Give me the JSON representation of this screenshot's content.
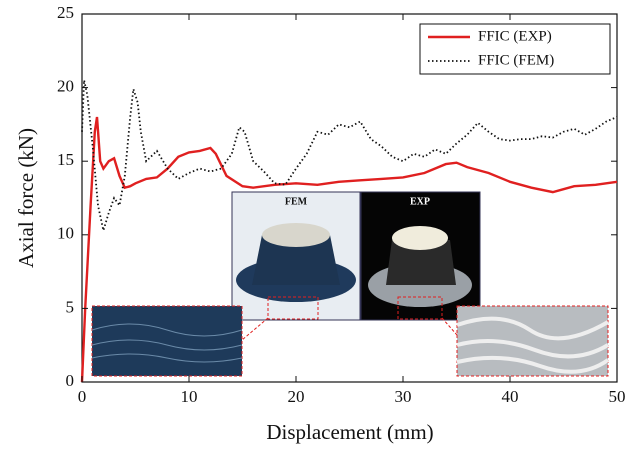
{
  "chart_data": {
    "type": "line",
    "xlabel": "Displacement (mm)",
    "ylabel": "Axial force (kN)",
    "xlim": [
      0,
      50
    ],
    "ylim": [
      0,
      25
    ],
    "xticks": [
      0,
      10,
      20,
      30,
      40,
      50
    ],
    "yticks": [
      0,
      5,
      10,
      15,
      20,
      25
    ],
    "legend": "upper right",
    "annotations": [
      "FEM",
      "EXP"
    ],
    "series": [
      {
        "name": "FFIC (EXP)",
        "color": "#e02020",
        "style": "solid",
        "x": [
          0,
          0.3,
          0.8,
          1.2,
          1.4,
          1.7,
          2,
          2.5,
          3,
          3.5,
          4,
          4.5,
          5,
          6,
          7,
          8,
          9,
          10,
          11,
          12,
          12.5,
          13.5,
          15,
          16,
          18,
          20,
          22,
          24,
          26,
          28,
          30,
          32,
          34,
          35,
          36,
          38,
          40,
          42,
          44,
          45,
          46,
          48,
          50
        ],
        "values": [
          0,
          5,
          12,
          17,
          18,
          15,
          14.5,
          15,
          15.2,
          14,
          13.2,
          13.3,
          13.5,
          13.8,
          13.9,
          14.5,
          15.3,
          15.6,
          15.7,
          15.9,
          15.5,
          14,
          13.3,
          13.2,
          13.4,
          13.5,
          13.4,
          13.6,
          13.7,
          13.8,
          13.9,
          14.2,
          14.8,
          14.9,
          14.6,
          14.2,
          13.6,
          13.2,
          12.9,
          13.1,
          13.3,
          13.4,
          13.6
        ]
      },
      {
        "name": "FFIC (FEM)",
        "color": "#111111",
        "style": "dotted",
        "x": [
          0,
          0.2,
          0.5,
          1,
          1.5,
          2,
          2.5,
          3,
          3.5,
          4,
          4.5,
          4.8,
          5.2,
          5.5,
          6,
          7,
          8,
          9,
          10,
          11,
          12,
          13,
          14,
          14.7,
          15.2,
          16,
          17,
          18,
          19,
          20,
          21,
          22,
          23,
          24,
          25,
          26,
          27,
          28,
          29,
          30,
          31,
          32,
          33,
          34,
          35,
          36,
          37,
          38,
          39,
          40,
          41,
          42,
          43,
          44,
          45,
          46,
          47,
          48,
          49,
          50
        ],
        "values": [
          17,
          20.5,
          19.5,
          16,
          12,
          10.3,
          11.5,
          12.5,
          12,
          14,
          18,
          19.9,
          19,
          17,
          15,
          15.7,
          14.5,
          13.8,
          14.2,
          14.5,
          14.3,
          14.5,
          15.5,
          17.3,
          17,
          15,
          14.3,
          13.5,
          13.4,
          14.5,
          15.5,
          17,
          16.8,
          17.5,
          17.3,
          17.7,
          16.5,
          16,
          15.3,
          15,
          15.5,
          15.3,
          15.8,
          15.5,
          16.2,
          16.8,
          17.6,
          17,
          16.5,
          16.4,
          16.5,
          16.5,
          16.7,
          16.6,
          17,
          17.2,
          16.8,
          17.2,
          17.7,
          18
        ]
      }
    ]
  }
}
